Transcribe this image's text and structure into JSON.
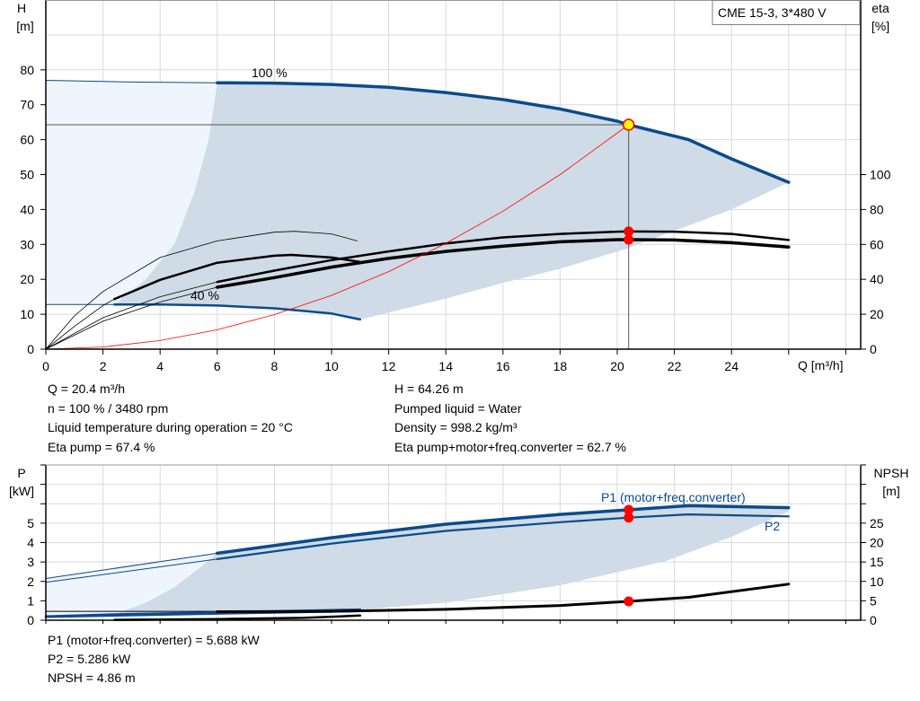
{
  "legend_box": "CME 15-3, 3*480 V",
  "colors": {
    "grid": "#d9d9d9",
    "pump_curve": "#0a4b8c",
    "operating_region": "#cfdbe6",
    "extended_region": "#eef5fc",
    "system_curve": "#ff0000",
    "eta_npsh": "#000000",
    "operating_point": "#ffff00",
    "marker": "#ff0000"
  },
  "chart_data": [
    {
      "type": "line",
      "name": "head-efficiency",
      "xlabel": "Q [m³/h]",
      "ylabel": "H [m]",
      "ylabel_parts": [
        "H",
        "[m]"
      ],
      "y2label_parts": [
        "eta",
        "[%]"
      ],
      "xlim": [
        0,
        28
      ],
      "ylim": [
        0,
        100
      ],
      "y2lim": [
        0,
        200
      ],
      "x_ticks": [
        "0",
        "2",
        "4",
        "6",
        "8",
        "10",
        "12",
        "14",
        "16",
        "18",
        "20",
        "22",
        "24"
      ],
      "y_ticks": [
        "0",
        "10",
        "20",
        "30",
        "40",
        "50",
        "60",
        "70",
        "80"
      ],
      "y2_ticks": [
        "0",
        "20",
        "40",
        "60",
        "80",
        "100"
      ],
      "grid": true,
      "annotations": [
        "100 %",
        "40 %"
      ],
      "series": {
        "head_100": {
          "thin": [
            [
              0,
              77
            ],
            [
              3,
              76.5
            ],
            [
              6,
              76.3
            ]
          ],
          "thick": [
            [
              6,
              76.3
            ],
            [
              8,
              76.2
            ],
            [
              10,
              75.8
            ],
            [
              12,
              75
            ],
            [
              14,
              73.5
            ],
            [
              16,
              71.5
            ],
            [
              18,
              68.8
            ],
            [
              20,
              65.3
            ],
            [
              20.4,
              64.26
            ],
            [
              22.5,
              60
            ],
            [
              24,
              54.5
            ],
            [
              26,
              47.8
            ]
          ]
        },
        "head_40": {
          "thin": [
            [
              0,
              12.8
            ],
            [
              2.4,
              12.8
            ]
          ],
          "thick": [
            [
              2.4,
              12.8
            ],
            [
              4,
              12.8
            ],
            [
              6,
              12.5
            ],
            [
              8,
              11.7
            ],
            [
              10,
              10.2
            ],
            [
              11,
              8.5
            ]
          ]
        },
        "eta_pump_100": {
          "thin": [
            [
              0,
              0
            ],
            [
              2,
              18
            ],
            [
              4,
              30
            ],
            [
              6,
              38.5
            ]
          ],
          "thick": [
            [
              6,
              38.5
            ],
            [
              8,
              45
            ],
            [
              10,
              51
            ],
            [
              12,
              56
            ],
            [
              14,
              60.5
            ],
            [
              16,
              64
            ],
            [
              18,
              66
            ],
            [
              20,
              67.3
            ],
            [
              20.4,
              67.4
            ],
            [
              22,
              67.3
            ],
            [
              24,
              66
            ],
            [
              26,
              62.5
            ]
          ]
        },
        "eta_total_100": {
          "thin": [
            [
              0,
              0
            ],
            [
              2,
              16
            ],
            [
              4,
              27
            ],
            [
              6,
              35.5
            ]
          ],
          "thick": [
            [
              6,
              35.5
            ],
            [
              8,
              41
            ],
            [
              10,
              47
            ],
            [
              12,
              52
            ],
            [
              14,
              56
            ],
            [
              16,
              59
            ],
            [
              18,
              61.5
            ],
            [
              20,
              62.7
            ],
            [
              20.4,
              62.7
            ],
            [
              22,
              62.5
            ],
            [
              24,
              61
            ],
            [
              26,
              58.5
            ]
          ]
        },
        "eta_pump_40": {
          "thin": [
            [
              0,
              0
            ],
            [
              1,
              19
            ],
            [
              2,
              33
            ],
            [
              4,
              52.5
            ],
            [
              6,
              62
            ],
            [
              8,
              67
            ],
            [
              8.7,
              67.5
            ],
            [
              10,
              66
            ],
            [
              10.9,
              62
            ]
          ]
        },
        "eta_total_40": {
          "thin": [
            [
              0,
              0
            ],
            [
              1,
              13
            ],
            [
              2,
              25
            ],
            [
              2.4,
              28.7
            ]
          ],
          "thick": [
            [
              2.4,
              28.7
            ],
            [
              4,
              39.7
            ],
            [
              6,
              49.5
            ],
            [
              8,
              53.5
            ],
            [
              8.6,
              54
            ],
            [
              10,
              52.5
            ],
            [
              11,
              50
            ]
          ]
        },
        "system_curve": [
          [
            0,
            0
          ],
          [
            2,
            0.62
          ],
          [
            4,
            2.47
          ],
          [
            6,
            5.56
          ],
          [
            8,
            9.9
          ],
          [
            10,
            15.4
          ],
          [
            12,
            22.2
          ],
          [
            14,
            30.3
          ],
          [
            16,
            39.5
          ],
          [
            18,
            50
          ],
          [
            20.4,
            64.26
          ]
        ],
        "operating_region_lower": [
          [
            26,
            47.8
          ],
          [
            24,
            40
          ],
          [
            20.4,
            29
          ],
          [
            18,
            23
          ],
          [
            16,
            19
          ],
          [
            14,
            14.5
          ],
          [
            12,
            10.5
          ],
          [
            11,
            8.5
          ]
        ],
        "operating_region_left": [
          [
            2.4,
            12.8
          ],
          [
            3.5,
            20
          ],
          [
            4.5,
            30
          ],
          [
            5.2,
            45
          ],
          [
            5.7,
            60
          ],
          [
            6,
            76.3
          ]
        ]
      },
      "operating_point": {
        "Q": 20.4,
        "H": 64.26,
        "eta_pump": 67.4,
        "eta_total": 62.7
      }
    },
    {
      "type": "line",
      "name": "power-npsh",
      "ylabel_parts": [
        "P",
        "[kW]"
      ],
      "y2label_parts": [
        "NPSH",
        "[m]"
      ],
      "xlim": [
        0,
        28
      ],
      "ylim": [
        0,
        8
      ],
      "y2lim": [
        0,
        40
      ],
      "y_ticks": [
        "0",
        "1",
        "2",
        "3",
        "4",
        "5"
      ],
      "y2_ticks": [
        "0",
        "5",
        "10",
        "15",
        "20",
        "25"
      ],
      "grid": true,
      "series_labels": {
        "p1": "P1 (motor+freq.converter)",
        "p2": "P2"
      },
      "series": {
        "p1_100": {
          "thin": [
            [
              0,
              2.15
            ],
            [
              6,
              3.45
            ]
          ],
          "thick": [
            [
              6,
              3.45
            ],
            [
              10,
              4.25
            ],
            [
              14,
              4.95
            ],
            [
              18,
              5.45
            ],
            [
              20.4,
              5.688
            ],
            [
              22.5,
              5.9
            ],
            [
              26,
              5.8
            ]
          ]
        },
        "p2_100": {
          "thin": [
            [
              0,
              1.95
            ],
            [
              6,
              3.15
            ]
          ],
          "thick": [
            [
              6,
              3.15
            ],
            [
              10,
              3.95
            ],
            [
              14,
              4.6
            ],
            [
              18,
              5.05
            ],
            [
              20.4,
              5.286
            ],
            [
              22.5,
              5.45
            ],
            [
              26,
              5.35
            ]
          ]
        },
        "p1_40": [
          [
            0,
            0.2
          ],
          [
            2.4,
            0.3
          ],
          [
            6,
            0.4
          ],
          [
            11,
            0.55
          ]
        ],
        "p2_40": [
          [
            0,
            0.15
          ],
          [
            2.4,
            0.22
          ],
          [
            6,
            0.32
          ],
          [
            11,
            0.45
          ]
        ],
        "npsh_100": [
          [
            6,
            2.2
          ],
          [
            10,
            2.3
          ],
          [
            14,
            2.8
          ],
          [
            18,
            3.8
          ],
          [
            20.4,
            4.86
          ],
          [
            22.5,
            5.9
          ],
          [
            26,
            9.3
          ]
        ],
        "npsh_40": [
          [
            2.4,
            0.1
          ],
          [
            6,
            0.3
          ],
          [
            9,
            0.6
          ],
          [
            11,
            1.2
          ]
        ],
        "reference_line": [
          [
            0,
            0.46
          ],
          [
            6,
            0.46
          ]
        ],
        "operating_region_lower": [
          [
            26,
            5.6
          ],
          [
            24,
            4.3
          ],
          [
            21.7,
            3.05
          ],
          [
            18,
            1.8
          ],
          [
            14,
            0.9
          ],
          [
            11,
            0.55
          ]
        ],
        "operating_region_left": [
          [
            2.4,
            0.3
          ],
          [
            3.5,
            0.9
          ],
          [
            4.5,
            1.7
          ],
          [
            5.3,
            2.6
          ],
          [
            6,
            3.45
          ]
        ]
      },
      "operating_point": {
        "Q": 20.4,
        "P1": 5.688,
        "P2": 5.286,
        "NPSH": 4.86
      }
    }
  ],
  "results_top": {
    "left": [
      "Q = 20.4 m³/h",
      "n = 100 % / 3480 rpm",
      "Liquid temperature during operation = 20 °C",
      "Eta pump = 67.4 %"
    ],
    "right": [
      "H = 64.26 m",
      "Pumped liquid = Water",
      "Density = 998.2 kg/m³",
      "Eta pump+motor+freq.converter = 62.7 %"
    ]
  },
  "results_bottom": [
    "P1 (motor+freq.converter) = 5.688 kW",
    "P2 = 5.286 kW",
    "NPSH = 4.86 m"
  ]
}
